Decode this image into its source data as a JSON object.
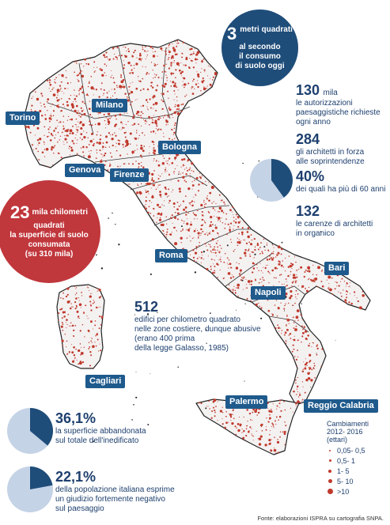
{
  "cities": {
    "torino": "Torino",
    "milano": "Milano",
    "genova": "Genova",
    "bologna": "Bologna",
    "firenze": "Firenze",
    "roma": "Roma",
    "napoli": "Napoli",
    "bari": "Bari",
    "cagliari": "Cagliari",
    "palermo": "Palermo",
    "reggio_calabria": "Reggio Calabria"
  },
  "bubble_3": {
    "number": "3",
    "text1": "metri quadrati",
    "text2": "al secondo",
    "text3": "il consumo",
    "text4": "di suolo oggi",
    "color": "#1f4d7a"
  },
  "bubble_23": {
    "number": "23",
    "text1": "mila chilometri",
    "text2": "quadrati",
    "text3": "la superficie di suolo",
    "text4": "consumata",
    "text5": "(su 310 mila)",
    "color": "#c0373c"
  },
  "stat_130": {
    "number": "130",
    "unit": "mila",
    "line1": "le autorizzazioni",
    "line2": "paesaggistiche richieste",
    "line3": "ogni anno"
  },
  "stat_284": {
    "number": "284",
    "line1": "gli architetti in forza",
    "line2": "alle soprintendenze"
  },
  "stat_40": {
    "number": "40%",
    "line1": "dei quali ha più di 60 anni",
    "fraction": 0.4
  },
  "stat_132": {
    "number": "132",
    "line1": "le carenze di architetti",
    "line2": "in organico"
  },
  "stat_512": {
    "number": "512",
    "line1": "edifici per chilometro quadrato",
    "line2": "nelle zone costiere, dunque abusive",
    "line3": "(erano 400 prima",
    "line4": "della legge Galasso, 1985)"
  },
  "stat_36": {
    "number": "36,1%",
    "line1": "la superficie abbandonata",
    "line2": "sul totale dell'inedificato",
    "fraction": 0.361
  },
  "stat_22": {
    "number": "22,1%",
    "line1": "della popolazione italiana esprime",
    "line2": "un giudizio fortemente negativo",
    "line3": "sul paesaggio",
    "fraction": 0.221
  },
  "legend": {
    "title1": "Cambiamenti",
    "title2": "2012- 2016",
    "title3": "(ettari)",
    "items": [
      "0,05- 0,5",
      "0,5- 1",
      "1- 5",
      "5- 10",
      ">10"
    ]
  },
  "source": "Fonte: elaborazioni ISPRA su cartografia SNPA.",
  "colors": {
    "navy": "#1d3f6e",
    "label_blue": "#1f5a8c",
    "pie_light": "#c5d3e6",
    "pie_dark": "#1f4d7a",
    "map_fill": "#f4f1f1",
    "dot_red": "#c0392b"
  }
}
